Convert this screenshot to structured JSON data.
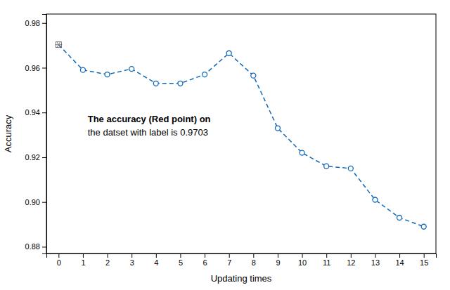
{
  "chart_data": {
    "type": "line",
    "x": [
      0,
      1,
      2,
      3,
      4,
      5,
      6,
      7,
      8,
      9,
      10,
      11,
      12,
      13,
      14,
      15
    ],
    "values": [
      0.9703,
      0.959,
      0.957,
      0.9595,
      0.953,
      0.953,
      0.957,
      0.9665,
      0.9565,
      0.933,
      0.922,
      0.916,
      0.915,
      0.901,
      0.893,
      0.889
    ],
    "color": "#1068b5",
    "line_style": "dashed",
    "marker": "circle",
    "xlabel": "Updating times",
    "ylabel": "Accuracy",
    "annotations": [
      "The accuracy (Red point) on",
      "the datset with label is 0.9703"
    ],
    "xlim": [
      -0.5,
      15.5
    ],
    "ylim": [
      0.877,
      0.984
    ],
    "xticks": [
      0,
      1,
      2,
      3,
      4,
      5,
      6,
      7,
      8,
      9,
      10,
      11,
      12,
      13,
      14,
      15
    ],
    "yticks": [
      {
        "value": 0.88,
        "label": "0.88"
      },
      {
        "value": 0.9,
        "label": "0.90"
      },
      {
        "value": 0.92,
        "label": "0.92"
      },
      {
        "value": 0.94,
        "label": "0.94"
      },
      {
        "value": 0.96,
        "label": "0.96"
      },
      {
        "value": 0.98,
        "label": "0.98"
      }
    ],
    "grid": false
  }
}
